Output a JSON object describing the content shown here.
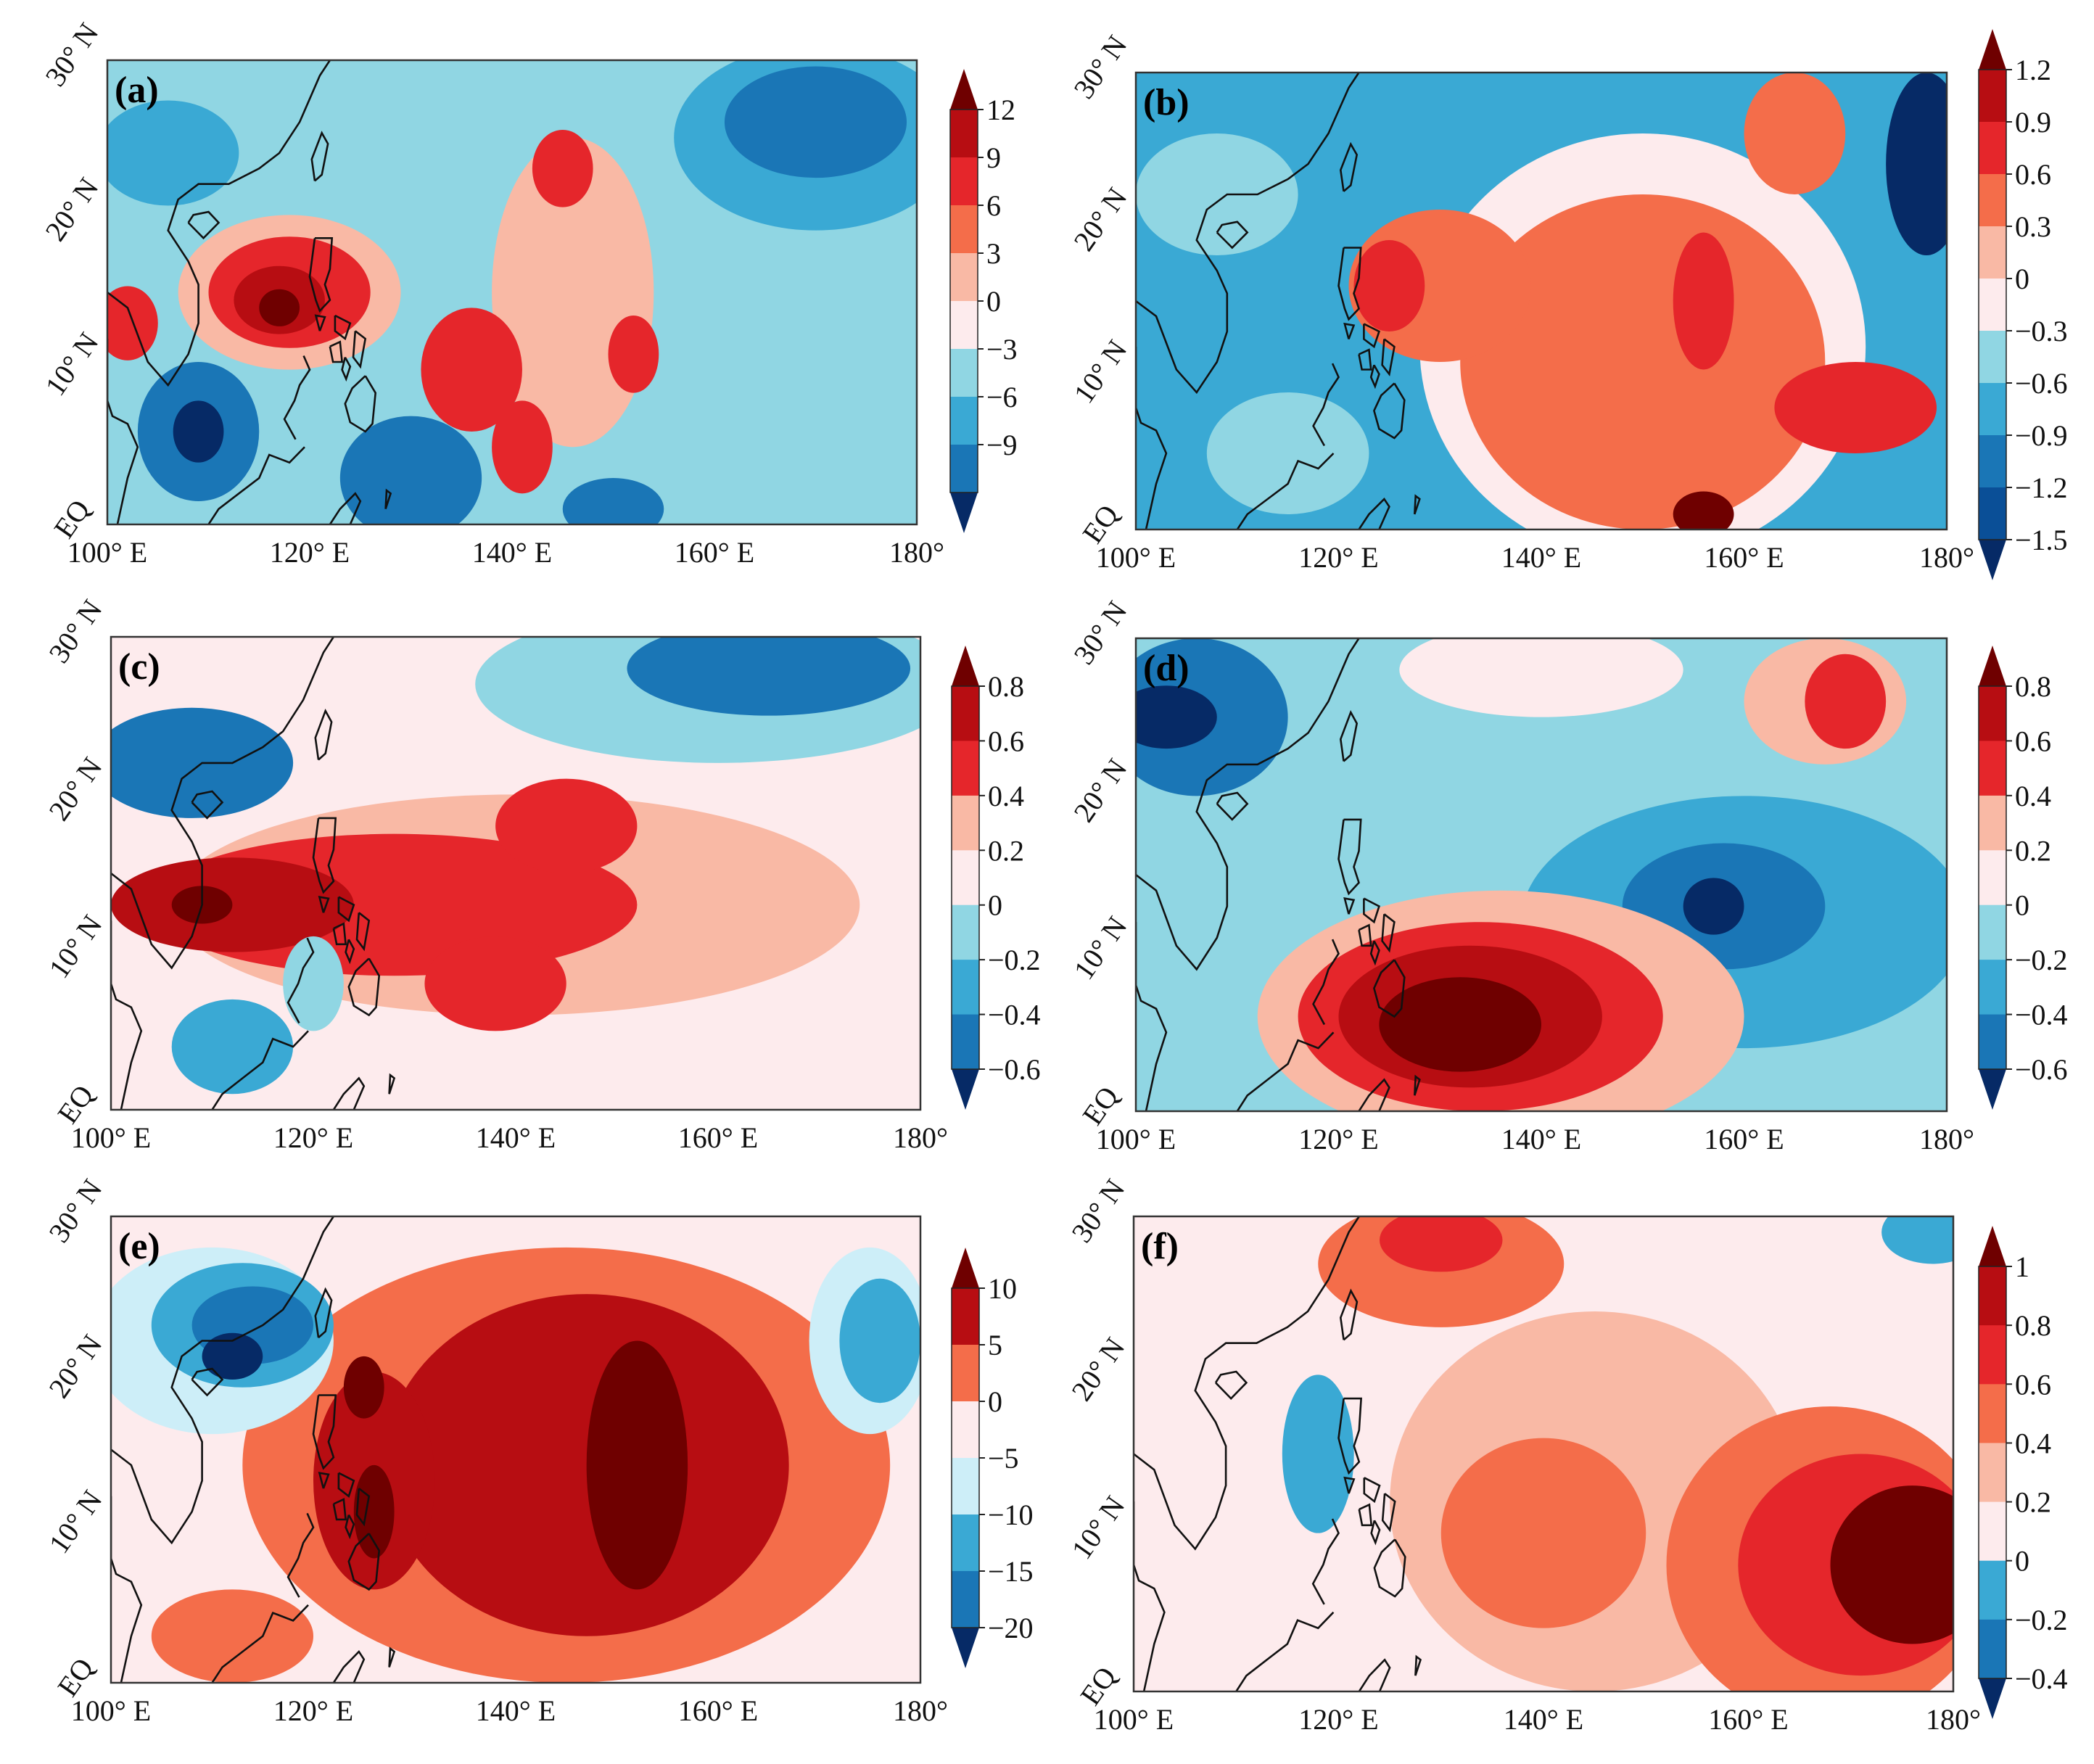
{
  "figure": {
    "panels": [
      "(a)",
      "(b)",
      "(c)",
      "(d)",
      "(e)",
      "(f)"
    ]
  },
  "palettes": {
    "reds": [
      "#6f0000",
      "#b70d12",
      "#e5262b",
      "#f46d4a",
      "#f9b9a5",
      "#fdebed"
    ],
    "blues": [
      "#cdeef8",
      "#90d6e3",
      "#3aa9d4",
      "#1a76b6",
      "#0a4f97",
      "#062a66"
    ],
    "coast": "#111111",
    "frame": "#333333"
  },
  "chart_data": [
    {
      "type": "heatmap",
      "panel": "(a)",
      "x_ticks": [
        "100° E",
        "120° E",
        "140° E",
        "160° E",
        "180°"
      ],
      "y_ticks": [
        "EQ",
        "10° N",
        "20° N",
        "30° N"
      ],
      "xlim": [
        100,
        180
      ],
      "ylim": [
        0,
        30
      ],
      "colorbar_labels": [
        "12",
        "9",
        "6",
        "3",
        "0",
        "−3",
        "−6",
        "−9"
      ],
      "colorbar_colors": [
        "#6f0000",
        "#b70d12",
        "#e5262b",
        "#f46d4a",
        "#f9b9a5",
        "#fdebed",
        "#90d6e3",
        "#3aa9d4",
        "#1a76b6",
        "#062a66"
      ],
      "background": "#90d6e3",
      "blobs": [
        {
          "lon": 170,
          "lat": 25,
          "rx": 14,
          "ry": 6,
          "color": "#3aa9d4"
        },
        {
          "lon": 170,
          "lat": 26,
          "rx": 9,
          "ry": 3.6,
          "color": "#1a76b6"
        },
        {
          "lon": 106,
          "lat": 24,
          "rx": 7,
          "ry": 3.4,
          "color": "#3aa9d4"
        },
        {
          "lon": 118,
          "lat": 15,
          "rx": 11,
          "ry": 5,
          "color": "#f9b9a5"
        },
        {
          "lon": 118,
          "lat": 15,
          "rx": 8,
          "ry": 3.6,
          "color": "#e5262b"
        },
        {
          "lon": 117,
          "lat": 14.5,
          "rx": 4.5,
          "ry": 2.2,
          "color": "#b70d12"
        },
        {
          "lon": 117,
          "lat": 14,
          "rx": 2,
          "ry": 1.2,
          "color": "#6f0000"
        },
        {
          "lon": 102,
          "lat": 13,
          "rx": 3,
          "ry": 2.4,
          "color": "#e5262b"
        },
        {
          "lon": 146,
          "lat": 15,
          "rx": 8,
          "ry": 10,
          "color": "#f9b9a5"
        },
        {
          "lon": 136,
          "lat": 10,
          "rx": 5,
          "ry": 4,
          "color": "#e5262b"
        },
        {
          "lon": 145,
          "lat": 23,
          "rx": 3,
          "ry": 2.5,
          "color": "#e5262b"
        },
        {
          "lon": 152,
          "lat": 11,
          "rx": 2.5,
          "ry": 2.5,
          "color": "#e5262b"
        },
        {
          "lon": 141,
          "lat": 5,
          "rx": 3,
          "ry": 3,
          "color": "#e5262b"
        },
        {
          "lon": 109,
          "lat": 6,
          "rx": 6,
          "ry": 4.5,
          "color": "#1a76b6"
        },
        {
          "lon": 109,
          "lat": 6,
          "rx": 2.5,
          "ry": 2,
          "color": "#062a66"
        },
        {
          "lon": 130,
          "lat": 3,
          "rx": 7,
          "ry": 4,
          "color": "#1a76b6"
        },
        {
          "lon": 150,
          "lat": 1,
          "rx": 5,
          "ry": 2,
          "color": "#1a76b6"
        }
      ]
    },
    {
      "type": "heatmap",
      "panel": "(b)",
      "x_ticks": [
        "100° E",
        "120° E",
        "140° E",
        "160° E",
        "180°"
      ],
      "y_ticks": [
        "EQ",
        "10° N",
        "20° N",
        "30° N"
      ],
      "xlim": [
        100,
        180
      ],
      "ylim": [
        0,
        30
      ],
      "colorbar_labels": [
        "1.2",
        "0.9",
        "0.6",
        "0.3",
        "0",
        "−0.3",
        "−0.6",
        "−0.9",
        "−1.2",
        "−1.5"
      ],
      "colorbar_colors": [
        "#6f0000",
        "#b70d12",
        "#e5262b",
        "#f46d4a",
        "#f9b9a5",
        "#fdebed",
        "#90d6e3",
        "#3aa9d4",
        "#1a76b6",
        "#0a4f97",
        "#062a66"
      ],
      "background": "#3aa9d4",
      "blobs": [
        {
          "lon": 150,
          "lat": 12,
          "rx": 22,
          "ry": 14,
          "color": "#fdebed"
        },
        {
          "lon": 150,
          "lat": 11,
          "rx": 18,
          "ry": 11,
          "color": "#f46d4a"
        },
        {
          "lon": 130,
          "lat": 16,
          "rx": 9,
          "ry": 5,
          "color": "#f46d4a"
        },
        {
          "lon": 125,
          "lat": 16,
          "rx": 3.5,
          "ry": 3,
          "color": "#e5262b"
        },
        {
          "lon": 156,
          "lat": 15,
          "rx": 3,
          "ry": 4.5,
          "color": "#e5262b"
        },
        {
          "lon": 171,
          "lat": 8,
          "rx": 8,
          "ry": 3,
          "color": "#e5262b"
        },
        {
          "lon": 165,
          "lat": 26,
          "rx": 5,
          "ry": 4,
          "color": "#f46d4a"
        },
        {
          "lon": 178,
          "lat": 24,
          "rx": 4,
          "ry": 6,
          "color": "#062a66"
        },
        {
          "lon": 156,
          "lat": 1,
          "rx": 3,
          "ry": 1.5,
          "color": "#6f0000"
        },
        {
          "lon": 108,
          "lat": 22,
          "rx": 8,
          "ry": 4,
          "color": "#90d6e3"
        },
        {
          "lon": 115,
          "lat": 5,
          "rx": 8,
          "ry": 4,
          "color": "#90d6e3"
        }
      ]
    },
    {
      "type": "heatmap",
      "panel": "(c)",
      "x_ticks": [
        "100° E",
        "120° E",
        "140° E",
        "160° E",
        "180°"
      ],
      "y_ticks": [
        "EQ",
        "10° N",
        "20° N",
        "30° N"
      ],
      "xlim": [
        100,
        180
      ],
      "ylim": [
        0,
        30
      ],
      "colorbar_labels": [
        "0.8",
        "0.6",
        "0.4",
        "0.2",
        "0",
        "−0.2",
        "−0.4",
        "−0.6"
      ],
      "colorbar_colors": [
        "#6f0000",
        "#b70d12",
        "#e5262b",
        "#f9b9a5",
        "#fdebed",
        "#90d6e3",
        "#3aa9d4",
        "#1a76b6",
        "#062a66"
      ],
      "background": "#fdebed",
      "blobs": [
        {
          "lon": 160,
          "lat": 27,
          "rx": 24,
          "ry": 5,
          "color": "#90d6e3"
        },
        {
          "lon": 165,
          "lat": 28,
          "rx": 14,
          "ry": 3,
          "color": "#1a76b6"
        },
        {
          "lon": 108,
          "lat": 22,
          "rx": 10,
          "ry": 3.5,
          "color": "#1a76b6"
        },
        {
          "lon": 140,
          "lat": 13,
          "rx": 34,
          "ry": 7,
          "color": "#f9b9a5"
        },
        {
          "lon": 128,
          "lat": 13,
          "rx": 24,
          "ry": 4.5,
          "color": "#e5262b"
        },
        {
          "lon": 145,
          "lat": 18,
          "rx": 7,
          "ry": 3,
          "color": "#e5262b"
        },
        {
          "lon": 138,
          "lat": 8,
          "rx": 7,
          "ry": 3,
          "color": "#e5262b"
        },
        {
          "lon": 112,
          "lat": 13,
          "rx": 12,
          "ry": 3,
          "color": "#b70d12"
        },
        {
          "lon": 109,
          "lat": 13,
          "rx": 3,
          "ry": 1.2,
          "color": "#6f0000"
        },
        {
          "lon": 112,
          "lat": 4,
          "rx": 6,
          "ry": 3,
          "color": "#3aa9d4"
        },
        {
          "lon": 120,
          "lat": 8,
          "rx": 3,
          "ry": 3,
          "color": "#90d6e3"
        }
      ]
    },
    {
      "type": "heatmap",
      "panel": "(d)",
      "x_ticks": [
        "100° E",
        "120° E",
        "140° E",
        "160° E",
        "180°"
      ],
      "y_ticks": [
        "EQ",
        "10° N",
        "20° N",
        "30° N"
      ],
      "xlim": [
        100,
        180
      ],
      "ylim": [
        0,
        30
      ],
      "colorbar_labels": [
        "0.8",
        "0.6",
        "0.4",
        "0.2",
        "0",
        "−0.2",
        "−0.4",
        "−0.6"
      ],
      "colorbar_colors": [
        "#6f0000",
        "#b70d12",
        "#e5262b",
        "#f9b9a5",
        "#fdebed",
        "#90d6e3",
        "#3aa9d4",
        "#1a76b6",
        "#062a66"
      ],
      "background": "#90d6e3",
      "blobs": [
        {
          "lon": 160,
          "lat": 12,
          "rx": 22,
          "ry": 8,
          "color": "#3aa9d4"
        },
        {
          "lon": 158,
          "lat": 13,
          "rx": 10,
          "ry": 4,
          "color": "#1a76b6"
        },
        {
          "lon": 157,
          "lat": 13,
          "rx": 3,
          "ry": 1.8,
          "color": "#062a66"
        },
        {
          "lon": 106,
          "lat": 25,
          "rx": 9,
          "ry": 5,
          "color": "#1a76b6"
        },
        {
          "lon": 103,
          "lat": 25,
          "rx": 5,
          "ry": 2,
          "color": "#062a66"
        },
        {
          "lon": 168,
          "lat": 26,
          "rx": 8,
          "ry": 4,
          "color": "#f9b9a5"
        },
        {
          "lon": 170,
          "lat": 26,
          "rx": 4,
          "ry": 3,
          "color": "#e5262b"
        },
        {
          "lon": 136,
          "lat": 6,
          "rx": 24,
          "ry": 8,
          "color": "#f9b9a5"
        },
        {
          "lon": 134,
          "lat": 6,
          "rx": 18,
          "ry": 6,
          "color": "#e5262b"
        },
        {
          "lon": 133,
          "lat": 6,
          "rx": 13,
          "ry": 4.5,
          "color": "#b70d12"
        },
        {
          "lon": 132,
          "lat": 5.5,
          "rx": 8,
          "ry": 3,
          "color": "#6f0000"
        },
        {
          "lon": 140,
          "lat": 28,
          "rx": 14,
          "ry": 3,
          "color": "#fdebed"
        }
      ]
    },
    {
      "type": "heatmap",
      "panel": "(e)",
      "x_ticks": [
        "100° E",
        "120° E",
        "140° E",
        "160° E",
        "180°"
      ],
      "y_ticks": [
        "EQ",
        "10° N",
        "20° N",
        "30° N"
      ],
      "xlim": [
        100,
        180
      ],
      "ylim": [
        0,
        30
      ],
      "colorbar_labels": [
        "10",
        "5",
        "0",
        "−5",
        "−10",
        "−15",
        "−20"
      ],
      "colorbar_colors": [
        "#6f0000",
        "#b70d12",
        "#f46d4a",
        "#fdebed",
        "#cdeef8",
        "#3aa9d4",
        "#1a76b6",
        "#062a66"
      ],
      "background": "#fdebed",
      "blobs": [
        {
          "lon": 145,
          "lat": 14,
          "rx": 32,
          "ry": 14,
          "color": "#f46d4a"
        },
        {
          "lon": 147,
          "lat": 14,
          "rx": 20,
          "ry": 11,
          "color": "#b70d12"
        },
        {
          "lon": 126,
          "lat": 13,
          "rx": 6,
          "ry": 7,
          "color": "#b70d12"
        },
        {
          "lon": 125,
          "lat": 19,
          "rx": 2,
          "ry": 2,
          "color": "#6f0000"
        },
        {
          "lon": 126,
          "lat": 11,
          "rx": 2,
          "ry": 3,
          "color": "#6f0000"
        },
        {
          "lon": 152,
          "lat": 14,
          "rx": 5,
          "ry": 8,
          "color": "#6f0000"
        },
        {
          "lon": 110,
          "lat": 22,
          "rx": 12,
          "ry": 6,
          "color": "#cdeef8"
        },
        {
          "lon": 113,
          "lat": 23,
          "rx": 9,
          "ry": 4,
          "color": "#3aa9d4"
        },
        {
          "lon": 114,
          "lat": 23,
          "rx": 6,
          "ry": 2.5,
          "color": "#1a76b6"
        },
        {
          "lon": 112,
          "lat": 21,
          "rx": 3,
          "ry": 1.5,
          "color": "#062a66"
        },
        {
          "lon": 175,
          "lat": 22,
          "rx": 6,
          "ry": 6,
          "color": "#cdeef8"
        },
        {
          "lon": 176,
          "lat": 22,
          "rx": 4,
          "ry": 4,
          "color": "#3aa9d4"
        },
        {
          "lon": 112,
          "lat": 3,
          "rx": 8,
          "ry": 3,
          "color": "#f46d4a"
        }
      ]
    },
    {
      "type": "heatmap",
      "panel": "(f)",
      "x_ticks": [
        "100° E",
        "120° E",
        "140° E",
        "160° E",
        "180°"
      ],
      "y_ticks": [
        "EQ",
        "10° N",
        "20° N",
        "30° N"
      ],
      "xlim": [
        100,
        180
      ],
      "ylim": [
        0,
        30
      ],
      "colorbar_labels": [
        "1",
        "0.8",
        "0.6",
        "0.4",
        "0.2",
        "0",
        "−0.2",
        "−0.4"
      ],
      "colorbar_colors": [
        "#6f0000",
        "#b70d12",
        "#e5262b",
        "#f46d4a",
        "#f9b9a5",
        "#fdebed",
        "#3aa9d4",
        "#1a76b6",
        "#062a66"
      ],
      "background": "#fdebed",
      "blobs": [
        {
          "lon": 145,
          "lat": 12,
          "rx": 20,
          "ry": 12,
          "color": "#f9b9a5"
        },
        {
          "lon": 140,
          "lat": 10,
          "rx": 10,
          "ry": 6,
          "color": "#f46d4a"
        },
        {
          "lon": 168,
          "lat": 8,
          "rx": 16,
          "ry": 10,
          "color": "#f46d4a"
        },
        {
          "lon": 171,
          "lat": 8,
          "rx": 12,
          "ry": 7,
          "color": "#e5262b"
        },
        {
          "lon": 176,
          "lat": 8,
          "rx": 8,
          "ry": 5,
          "color": "#6f0000"
        },
        {
          "lon": 130,
          "lat": 27,
          "rx": 12,
          "ry": 4,
          "color": "#f46d4a"
        },
        {
          "lon": 130,
          "lat": 28.5,
          "rx": 6,
          "ry": 2,
          "color": "#e5262b"
        },
        {
          "lon": 178,
          "lat": 29,
          "rx": 5,
          "ry": 2,
          "color": "#3aa9d4"
        },
        {
          "lon": 118,
          "lat": 15,
          "rx": 3.5,
          "ry": 5,
          "color": "#3aa9d4"
        }
      ]
    }
  ]
}
